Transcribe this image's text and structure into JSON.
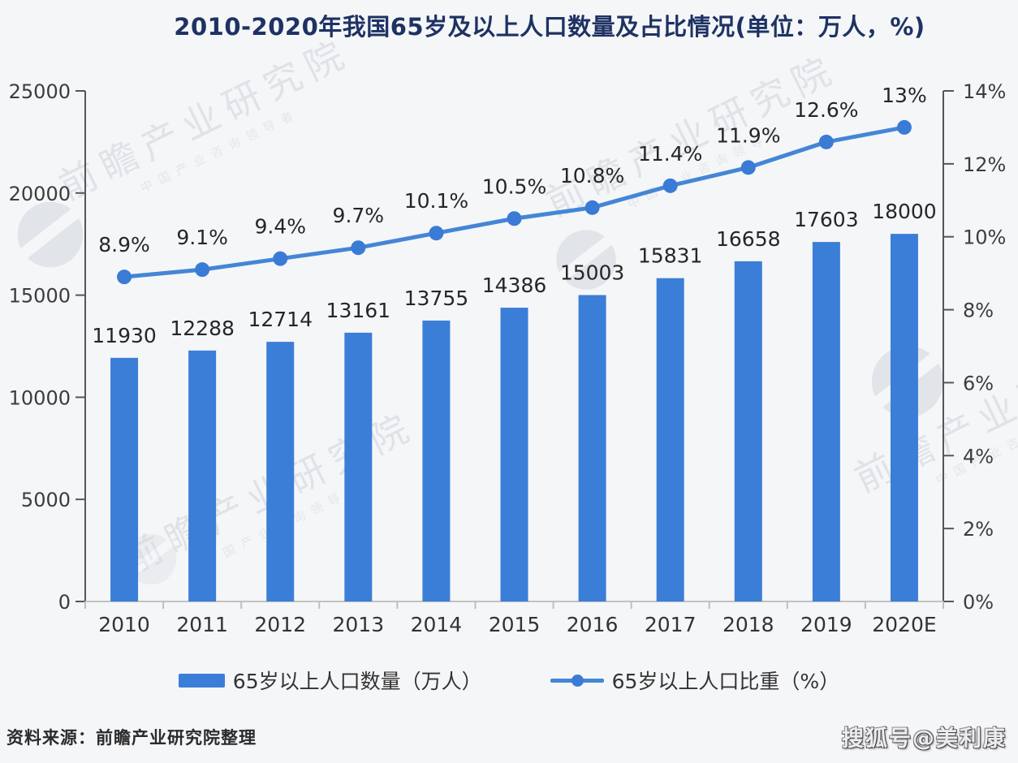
{
  "title": "2010-2020年我国65岁及以上人口数量及占比情况(单位：万人，%)",
  "source_note": "资料来源：前瞻产业研究院整理",
  "sohu_badge": "搜狐号@美利康",
  "watermark": {
    "brand": "前瞻产业研究院",
    "tagline": "中国产业咨询领导者"
  },
  "colors": {
    "background": "#f5f6f8",
    "bar": "#3b7ed8",
    "line": "#4486d6",
    "marker": "#3a7bd5",
    "title": "#1e3263",
    "axis": "#55565a",
    "baseline": "#c2c2c4",
    "tick_minor": "#bfbfbf",
    "label": "#262626",
    "axis_label": "#3c3c3c"
  },
  "chart_data": {
    "type": "combo-bar-line",
    "title": "2010-2020年我国65岁及以上人口数量及占比情况(单位：万人，%)",
    "categories": [
      "2010",
      "2011",
      "2012",
      "2013",
      "2014",
      "2015",
      "2016",
      "2017",
      "2018",
      "2019",
      "2020E"
    ],
    "series": [
      {
        "name": "65岁以上人口数量（万人）",
        "type": "bar",
        "axis": "left",
        "values": [
          11930,
          12288,
          12714,
          13161,
          13755,
          14386,
          15003,
          15831,
          16658,
          17603,
          18000
        ],
        "labels": [
          "11930",
          "12288",
          "12714",
          "13161",
          "13755",
          "14386",
          "15003",
          "15831",
          "16658",
          "17603",
          "18000"
        ]
      },
      {
        "name": "65岁以上人口比重（%）",
        "type": "line",
        "axis": "right",
        "values": [
          8.9,
          9.1,
          9.4,
          9.7,
          10.1,
          10.5,
          10.8,
          11.4,
          11.9,
          12.6,
          13
        ],
        "labels": [
          "8.9%",
          "9.1%",
          "9.4%",
          "9.7%",
          "10.1%",
          "10.5%",
          "10.8%",
          "11.4%",
          "11.9%",
          "12.6%",
          "13%"
        ]
      }
    ],
    "left_axis": {
      "min": 0,
      "max": 25000,
      "step": 5000,
      "ticks": [
        "0",
        "5000",
        "10000",
        "15000",
        "20000",
        "25000"
      ]
    },
    "right_axis": {
      "min": 0,
      "max": 14,
      "step": 2,
      "ticks": [
        "0%",
        "2%",
        "4%",
        "6%",
        "8%",
        "10%",
        "12%",
        "14%"
      ]
    },
    "legend_position": "bottom",
    "grid": false
  }
}
